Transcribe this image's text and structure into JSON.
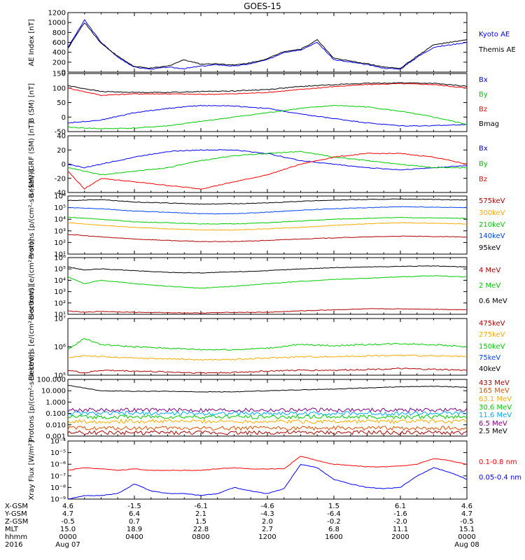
{
  "title": "GOES-15",
  "chart_data": [
    {
      "type": "line",
      "ylabel": "AE Index [nT]",
      "ylim": [
        0,
        1200
      ],
      "yticks": [
        "0",
        "200",
        "400",
        "600",
        "800",
        "1000",
        "1200"
      ],
      "legend": [
        {
          "name": "Kyoto AE",
          "color": "#0000ff"
        },
        {
          "name": "Themis AE",
          "color": "#000000"
        }
      ],
      "x_hours": [
        0,
        1,
        2,
        3,
        4,
        5,
        6,
        7,
        8,
        9,
        10,
        11,
        12,
        13,
        14,
        15,
        16,
        17,
        18,
        19,
        20,
        21,
        22,
        23,
        24
      ],
      "series": [
        {
          "name": "Kyoto AE",
          "color": "#0000ff",
          "values": [
            500,
            1050,
            600,
            300,
            100,
            60,
            100,
            70,
            120,
            150,
            120,
            170,
            250,
            400,
            450,
            600,
            250,
            200,
            150,
            80,
            60,
            300,
            500,
            550,
            600
          ]
        },
        {
          "name": "Themis AE",
          "color": "#000000",
          "values": [
            480,
            1000,
            580,
            320,
            110,
            80,
            120,
            250,
            160,
            170,
            140,
            190,
            270,
            420,
            460,
            650,
            280,
            220,
            170,
            100,
            80,
            320,
            550,
            600,
            650
          ]
        }
      ]
    },
    {
      "type": "line",
      "ylabel": "B (SM) [nT]",
      "ylim": [
        -50,
        150
      ],
      "yticks": [
        "-50",
        "0",
        "50",
        "100",
        "150"
      ],
      "legend": [
        {
          "name": "Bx",
          "color": "#0000ff"
        },
        {
          "name": "By",
          "color": "#00cc00"
        },
        {
          "name": "Bz",
          "color": "#ff0000"
        },
        {
          "name": "Bmag",
          "color": "#000000"
        }
      ],
      "x_hours": [
        0,
        2,
        4,
        6,
        8,
        10,
        12,
        14,
        16,
        18,
        20,
        22,
        24
      ],
      "series": [
        {
          "name": "Bx",
          "color": "#0000ff",
          "values": [
            -20,
            -10,
            15,
            30,
            40,
            38,
            30,
            10,
            -5,
            -20,
            -30,
            -30,
            -25
          ]
        },
        {
          "name": "By",
          "color": "#00cc00",
          "values": [
            -35,
            -40,
            -38,
            -30,
            -15,
            0,
            15,
            30,
            40,
            35,
            20,
            0,
            -25
          ]
        },
        {
          "name": "Bz",
          "color": "#ff0000",
          "values": [
            100,
            75,
            80,
            80,
            78,
            80,
            85,
            95,
            105,
            112,
            115,
            112,
            100
          ]
        },
        {
          "name": "Bmag",
          "color": "#000000",
          "values": [
            108,
            88,
            85,
            85,
            88,
            90,
            95,
            105,
            112,
            116,
            118,
            116,
            106
          ]
        }
      ]
    },
    {
      "type": "line",
      "ylabel": "B (SM)-IGRF (SM) [nT]",
      "ylim": [
        -40,
        40
      ],
      "yticks": [
        "-40",
        "-20",
        "0",
        "20",
        "40"
      ],
      "legend": [
        {
          "name": "Bx",
          "color": "#0000ff"
        },
        {
          "name": "By",
          "color": "#00cc00"
        },
        {
          "name": "Bz",
          "color": "#ff0000"
        }
      ],
      "x_hours": [
        0,
        1,
        2,
        4,
        6,
        8,
        10,
        12,
        14,
        16,
        18,
        20,
        22,
        24
      ],
      "series": [
        {
          "name": "Bx",
          "color": "#0000ff",
          "values": [
            0,
            -5,
            0,
            10,
            18,
            20,
            20,
            15,
            5,
            0,
            -5,
            -8,
            -5,
            -2
          ]
        },
        {
          "name": "By",
          "color": "#00cc00",
          "values": [
            -5,
            -10,
            -15,
            -10,
            -5,
            5,
            12,
            15,
            18,
            10,
            5,
            0,
            -5,
            -5
          ]
        },
        {
          "name": "Bz",
          "color": "#ff0000",
          "values": [
            -10,
            -35,
            -20,
            -25,
            -30,
            -35,
            -25,
            -15,
            0,
            10,
            15,
            15,
            10,
            0
          ]
        }
      ]
    },
    {
      "type": "line",
      "ylabel": "Protons [p/(cm²-s-sr-keV)]",
      "yscale": "log",
      "ylim": [
        10,
        1000000
      ],
      "yticks": [
        "10¹",
        "10²",
        "10³",
        "10⁴",
        "10⁵",
        "10⁶"
      ],
      "legend": [
        {
          "name": "575keV",
          "color": "#b00000"
        },
        {
          "name": "300keV",
          "color": "#ffaa00"
        },
        {
          "name": "210keV",
          "color": "#00cc00"
        },
        {
          "name": "140keV",
          "color": "#0044ff"
        },
        {
          "name": "95keV",
          "color": "#000000"
        }
      ],
      "x_hours": [
        0,
        2,
        4,
        6,
        8,
        10,
        12,
        14,
        16,
        18,
        20,
        22,
        24
      ],
      "series": [
        {
          "name": "95keV",
          "color": "#000000",
          "values": [
            400000,
            500000,
            300000,
            250000,
            200000,
            220000,
            250000,
            350000,
            450000,
            500000,
            550000,
            500000,
            450000
          ]
        },
        {
          "name": "140keV",
          "color": "#0044ff",
          "values": [
            100000,
            80000,
            50000,
            40000,
            30000,
            30000,
            40000,
            60000,
            80000,
            100000,
            120000,
            110000,
            100000
          ]
        },
        {
          "name": "210keV",
          "color": "#00cc00",
          "values": [
            15000,
            10000,
            6000,
            5000,
            4000,
            4000,
            5000,
            7000,
            10000,
            12000,
            14000,
            13000,
            12000
          ]
        },
        {
          "name": "300keV",
          "color": "#ffaa00",
          "values": [
            5000,
            3000,
            2000,
            1500,
            1200,
            1200,
            1500,
            2000,
            3000,
            4000,
            5000,
            4500,
            4000
          ]
        },
        {
          "name": "575keV",
          "color": "#b00000",
          "values": [
            500,
            300,
            200,
            150,
            120,
            120,
            150,
            200,
            250,
            300,
            350,
            320,
            300
          ]
        }
      ]
    },
    {
      "type": "line",
      "ylabel": "Electrons [e/(cm²-s-sr)]",
      "yscale": "log",
      "ylim": [
        10,
        1000000
      ],
      "yticks": [
        "10¹",
        "10²",
        "10³",
        "10⁴",
        "10⁵",
        "10⁶"
      ],
      "legend": [
        {
          "name": "4 MeV",
          "color": "#b00000"
        },
        {
          "name": "2 MeV",
          "color": "#00cc00"
        },
        {
          "name": "0.6 MeV",
          "color": "#000000"
        }
      ],
      "x_hours": [
        0,
        1,
        2,
        4,
        6,
        8,
        10,
        12,
        14,
        16,
        18,
        20,
        22,
        24
      ],
      "series": [
        {
          "name": "0.6 MeV",
          "color": "#000000",
          "values": [
            150000,
            80000,
            100000,
            70000,
            50000,
            45000,
            55000,
            70000,
            100000,
            130000,
            150000,
            170000,
            180000,
            150000
          ]
        },
        {
          "name": "2 MeV",
          "color": "#00cc00",
          "values": [
            20000,
            5000,
            10000,
            5000,
            3000,
            2000,
            3000,
            5000,
            8000,
            12000,
            15000,
            20000,
            25000,
            20000
          ]
        },
        {
          "name": "4 MeV",
          "color": "#b00000",
          "values": [
            20,
            15,
            18,
            15,
            14,
            13,
            15,
            15,
            20,
            25,
            30,
            30,
            28,
            25
          ]
        }
      ]
    },
    {
      "type": "line",
      "ylabel": "Electrons [e/(cm²-s-sr-keV)]",
      "yscale": "log",
      "ylim": [
        100000,
        10000000
      ],
      "yticks": [
        "10⁵",
        "10⁶",
        "10⁷"
      ],
      "legend": [
        {
          "name": "475keV",
          "color": "#b00000"
        },
        {
          "name": "275keV",
          "color": "#ffaa00"
        },
        {
          "name": "150keV",
          "color": "#00cc00"
        },
        {
          "name": "75keV",
          "color": "#0044ff"
        },
        {
          "name": "40keV",
          "color": "#000000"
        }
      ],
      "x_hours": [
        0,
        1,
        2,
        4,
        6,
        8,
        10,
        12,
        14,
        16,
        18,
        20,
        22,
        24
      ],
      "series": [
        {
          "name": "150keV",
          "color": "#00cc00",
          "values": [
            800000,
            2000000,
            1200000,
            1000000,
            900000,
            800000,
            800000,
            900000,
            1200000,
            1100000,
            1200000,
            1300000,
            1200000,
            1000000
          ]
        },
        {
          "name": "275keV",
          "color": "#ffaa00",
          "values": [
            400000,
            500000,
            450000,
            400000,
            380000,
            350000,
            360000,
            400000,
            450000,
            450000,
            480000,
            500000,
            480000,
            450000
          ]
        },
        {
          "name": "475keV",
          "color": "#b00000",
          "values": [
            150000,
            120000,
            150000,
            140000,
            130000,
            120000,
            125000,
            140000,
            150000,
            150000,
            160000,
            170000,
            160000,
            150000
          ]
        }
      ]
    },
    {
      "type": "line",
      "ylabel": "Protons [p/(cm²-s-sr-keV)]",
      "yscale": "log",
      "ylim": [
        0.001,
        100
      ],
      "yticks": [
        "0.001",
        "0.010",
        "0.100",
        "1.000",
        "10.000",
        "100.000"
      ],
      "legend": [
        {
          "name": "433 MeV",
          "color": "#b00000"
        },
        {
          "name": "165 MeV",
          "color": "#e05000"
        },
        {
          "name": "63.1 MeV",
          "color": "#ffaa00"
        },
        {
          "name": "30.6 MeV",
          "color": "#00cc00"
        },
        {
          "name": "11.6 MeV",
          "color": "#00aaff"
        },
        {
          "name": "6.5 MeV",
          "color": "#800080"
        },
        {
          "name": "2.5 MeV",
          "color": "#000000"
        }
      ],
      "x_hours": [
        0,
        2,
        4,
        6,
        8,
        10,
        12,
        14,
        16,
        18,
        20,
        22,
        24
      ],
      "series": [
        {
          "name": "2.5 MeV",
          "color": "#000000",
          "values": [
            30,
            10,
            9,
            9,
            8,
            8,
            10,
            12,
            14,
            18,
            22,
            25,
            20
          ]
        },
        {
          "name": "6.5 MeV",
          "color": "#800080",
          "values": [
            0.2,
            0.2,
            0.2,
            0.2,
            0.2,
            0.2,
            0.2,
            0.2,
            0.2,
            0.2,
            0.2,
            0.2,
            0.2
          ]
        },
        {
          "name": "11.6 MeV",
          "color": "#00aaff",
          "values": [
            0.1,
            0.1,
            0.1,
            0.1,
            0.1,
            0.1,
            0.1,
            0.1,
            0.1,
            0.1,
            0.1,
            0.1,
            0.1
          ]
        },
        {
          "name": "30.6 MeV",
          "color": "#00cc00",
          "values": [
            0.05,
            0.05,
            0.05,
            0.05,
            0.05,
            0.05,
            0.05,
            0.05,
            0.05,
            0.05,
            0.05,
            0.05,
            0.05
          ]
        },
        {
          "name": "63.1 MeV",
          "color": "#ffaa00",
          "values": [
            0.02,
            0.02,
            0.02,
            0.02,
            0.02,
            0.02,
            0.02,
            0.02,
            0.02,
            0.02,
            0.02,
            0.02,
            0.02
          ]
        },
        {
          "name": "165 MeV",
          "color": "#e05000",
          "values": [
            0.005,
            0.005,
            0.005,
            0.005,
            0.005,
            0.005,
            0.005,
            0.005,
            0.005,
            0.005,
            0.005,
            0.005,
            0.005
          ]
        },
        {
          "name": "433 MeV",
          "color": "#b00000",
          "values": [
            0.002,
            0.002,
            0.002,
            0.002,
            0.002,
            0.002,
            0.002,
            0.002,
            0.002,
            0.002,
            0.002,
            0.002,
            0.002
          ]
        }
      ]
    },
    {
      "type": "line",
      "ylabel": "Xray Flux [W/m²]",
      "yscale": "log",
      "ylim": [
        1e-09,
        0.0001
      ],
      "yticks": [
        "10⁻⁹",
        "10⁻⁸",
        "10⁻⁷",
        "10⁻⁶",
        "10⁻⁵",
        "10⁻⁴"
      ],
      "legend": [
        {
          "name": "0.1-0.8 nm",
          "color": "#ff0000"
        },
        {
          "name": "0.05-0.4 nm",
          "color": "#0000ff"
        }
      ],
      "x_hours": [
        0,
        1,
        2,
        3,
        4,
        5,
        6,
        7,
        8,
        9,
        10,
        11,
        12,
        13,
        14,
        15,
        16,
        17,
        18,
        19,
        20,
        21,
        22,
        23,
        24
      ],
      "series": [
        {
          "name": "0.1-0.8 nm",
          "color": "#ff0000",
          "values": [
            3e-07,
            5e-07,
            4e-07,
            3e-07,
            4e-07,
            3e-07,
            3e-07,
            3e-07,
            3e-07,
            4e-07,
            5e-07,
            4e-07,
            4e-07,
            4e-07,
            5e-06,
            2e-06,
            1e-06,
            8e-07,
            6e-07,
            6e-07,
            7e-07,
            1e-06,
            3e-06,
            2e-06,
            1e-06
          ]
        },
        {
          "name": "0.05-0.4 nm",
          "color": "#0000ff",
          "values": [
            1e-09,
            2e-09,
            2e-09,
            3e-09,
            2e-08,
            5e-09,
            3e-09,
            3e-09,
            2e-09,
            3e-09,
            1e-08,
            5e-09,
            3e-09,
            8e-09,
            1e-06,
            5e-07,
            5e-08,
            2e-08,
            1e-08,
            8e-09,
            1e-08,
            1e-07,
            5e-07,
            2e-07,
            5e-08
          ]
        }
      ]
    }
  ],
  "xaxis": {
    "rows": [
      {
        "label": "X-GSM",
        "values": [
          "4.6",
          "-1.5",
          "-6.1",
          "-4.6",
          "1.5",
          "6.1",
          "4.6"
        ]
      },
      {
        "label": "Y-GSM",
        "values": [
          "4.7",
          "6.4",
          "2.1",
          "-4.3",
          "-6.4",
          "-1.6",
          "4.7"
        ]
      },
      {
        "label": "Z-GSM",
        "values": [
          "-0.5",
          "0.7",
          "1.5",
          "2.0",
          "-0.2",
          "-2.0",
          "-0.5"
        ]
      },
      {
        "label": "MLT",
        "values": [
          "15.0",
          "18.9",
          "22.8",
          "2.7",
          "6.8",
          "11.1",
          "15.1"
        ]
      },
      {
        "label": "hhmm",
        "values": [
          "0000",
          "0400",
          "0800",
          "1200",
          "1600",
          "2000",
          "0000"
        ]
      },
      {
        "label": "2016",
        "values": [
          "Aug 07",
          "",
          "",
          "",
          "",
          "",
          "Aug 08"
        ]
      }
    ]
  }
}
